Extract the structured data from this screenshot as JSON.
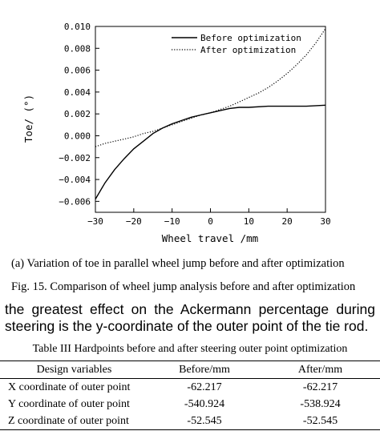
{
  "chart_data": {
    "type": "line",
    "xlabel": "Wheel travel /mm",
    "ylabel": "Toe/ (°)",
    "xlim": [
      -30,
      30
    ],
    "ylim": [
      -0.007,
      0.01
    ],
    "xticks": [
      "-30",
      "-20",
      "-10",
      "0",
      "10",
      "20",
      "30"
    ],
    "yticks": [
      "0.010",
      "0.008",
      "0.006",
      "0.004",
      "0.002",
      "0.000",
      "-0.002",
      "-0.004",
      "-0.006"
    ],
    "legend_position": "top-right",
    "grid": false,
    "series": [
      {
        "name": "Before optimization",
        "style": "solid",
        "x": [
          -30,
          -27.5,
          -25,
          -22.5,
          -20,
          -17.5,
          -15,
          -12.5,
          -10,
          -7.5,
          -5,
          -2.5,
          0,
          2.5,
          5,
          7.5,
          10,
          15,
          20,
          25,
          30
        ],
        "y": [
          -0.0058,
          -0.0043,
          -0.0031,
          -0.0021,
          -0.0012,
          -0.0005,
          0.0002,
          0.0007,
          0.0011,
          0.0014,
          0.0017,
          0.0019,
          0.0021,
          0.0023,
          0.0025,
          0.0026,
          0.0026,
          0.0027,
          0.0027,
          0.0027,
          0.0028
        ]
      },
      {
        "name": "After optimization",
        "style": "dotted",
        "x": [
          -30,
          -27.5,
          -25,
          -22.5,
          -20,
          -17.5,
          -15,
          -12.5,
          -10,
          -7.5,
          -5,
          -2.5,
          0,
          2.5,
          5,
          7.5,
          10,
          12.5,
          15,
          17.5,
          20,
          22.5,
          25,
          27.5,
          30
        ],
        "y": [
          -0.001,
          -0.0007,
          -0.0005,
          -0.0003,
          -0.0001,
          0.0002,
          0.0004,
          0.0007,
          0.001,
          0.0013,
          0.0016,
          0.0019,
          0.0021,
          0.0024,
          0.0027,
          0.0031,
          0.0035,
          0.0039,
          0.0044,
          0.005,
          0.0057,
          0.0065,
          0.0074,
          0.0085,
          0.0098
        ]
      }
    ]
  },
  "caption_a": "(a) Variation of toe in parallel wheel jump before and after optimization",
  "figure_caption": "Fig. 15. Comparison of wheel jump analysis before and after optimization",
  "body_line_1": "the greatest effect on the Ackermann percentage during",
  "body_line_2": "steering is the y-coordinate of the outer point of the tie rod.",
  "table_title": "Table III Hardpoints before and after steering outer point optimization",
  "table": {
    "headers": [
      "Design variables",
      "Before/mm",
      "After/mm"
    ],
    "rows": [
      [
        "X coordinate of outer point",
        "-62.217",
        "-62.217"
      ],
      [
        "Y coordinate of outer point",
        "-540.924",
        "-538.924"
      ],
      [
        "Z coordinate of outer point",
        "-52.545",
        "-52.545"
      ]
    ]
  }
}
